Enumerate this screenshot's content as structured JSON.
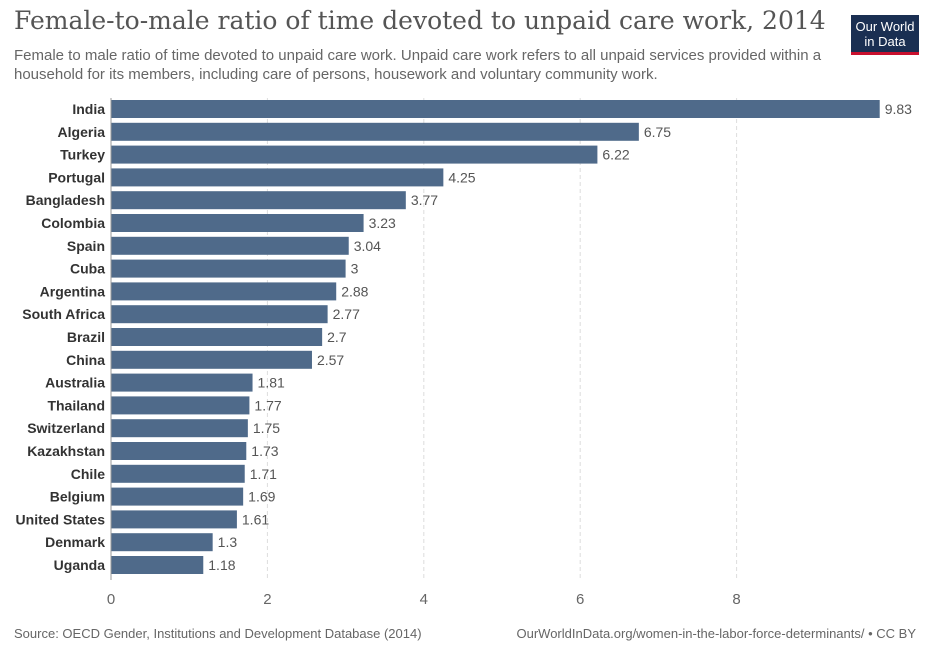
{
  "header": {
    "title": "Female-to-male ratio of time devoted to unpaid care work, 2014",
    "subtitle": "Female to male ratio of time devoted to unpaid care work. Unpaid care work refers to all unpaid services provided within a household for its members, including care of persons, housework and voluntary community work."
  },
  "logo": {
    "line1": "Our World",
    "line2": "in Data",
    "background": "#1a2f52",
    "accent": "#c8102e"
  },
  "footer": {
    "source": "Source: OECD Gender, Institutions and Development Database (2014)",
    "url": "OurWorldInData.org/women-in-the-labor-force-determinants/ • CC BY"
  },
  "colors": {
    "bar": "#4f6a8a",
    "grid": "#dddddd",
    "label": "#333333",
    "value": "#555555"
  },
  "chart_data": {
    "type": "bar",
    "orientation": "horizontal",
    "categories": [
      "India",
      "Algeria",
      "Turkey",
      "Portugal",
      "Bangladesh",
      "Colombia",
      "Spain",
      "Cuba",
      "Argentina",
      "South Africa",
      "Brazil",
      "China",
      "Australia",
      "Thailand",
      "Switzerland",
      "Kazakhstan",
      "Chile",
      "Belgium",
      "United States",
      "Denmark",
      "Uganda"
    ],
    "values": [
      9.83,
      6.75,
      6.22,
      4.25,
      3.77,
      3.23,
      3.04,
      3,
      2.88,
      2.77,
      2.7,
      2.57,
      1.81,
      1.77,
      1.75,
      1.73,
      1.71,
      1.69,
      1.61,
      1.3,
      1.18
    ],
    "value_labels": [
      "9.83",
      "6.75",
      "6.22",
      "4.25",
      "3.77",
      "3.23",
      "3.04",
      "3",
      "2.88",
      "2.77",
      "2.7",
      "2.57",
      "1.81",
      "1.77",
      "1.75",
      "1.73",
      "1.71",
      "1.69",
      "1.61",
      "1.3",
      "1.18"
    ],
    "xticks": [
      0,
      2,
      4,
      6,
      8
    ],
    "xlim": [
      0,
      9.83
    ],
    "grid": true
  }
}
